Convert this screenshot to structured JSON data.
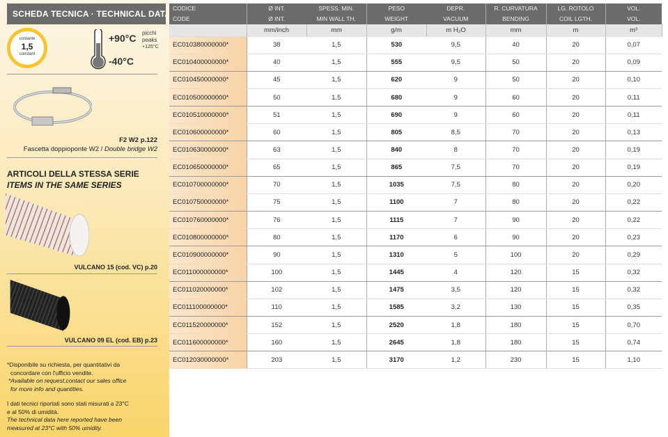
{
  "sidebar": {
    "title": "SCHEDA TECNICA · TECHNICAL DATA",
    "badge": {
      "top": "costante",
      "value": "1,5",
      "bottom": "constant"
    },
    "temp": {
      "max": "+90°C",
      "min": "-40°C",
      "peak1": "picchi",
      "peak2": "peaks",
      "peak3": "+125°C",
      "icon": "thermometer-icon"
    },
    "accessory": {
      "code": "F2 W2 p.122",
      "desc_it": "Fascetta doppioponte W2 / ",
      "desc_en": "Double bridge W2"
    },
    "series_title_it": "ARTICOLI DELLA STESSA SERIE",
    "series_title_en": "ITEMS IN THE SAME SERIES",
    "related": [
      {
        "label": "VULCANO 15 (cod. VC) p.20"
      },
      {
        "label": "VULCANO 09 EL (cod. EB) p.23"
      }
    ],
    "notes": {
      "n1_it": "*Disponibile su richiesta, per quantitativi da",
      "n1_it2": "concordare con l'ufficio vendite.",
      "n1_en": "*Available on request,contact our sales office",
      "n1_en2": "for more info and quantities.",
      "n2_it": "I dati tecnici riportati sono stati misurati a 23°C",
      "n2_it2": "e al 50% di umidità.",
      "n2_en": "The technical data here reported have been",
      "n2_en2": "measured at 23°C with 50% umidity."
    }
  },
  "table": {
    "header_it": [
      "CODICE",
      "Ø INT.",
      "SPESS. MIN.",
      "PESO",
      "DEPR.",
      "R. CURVATURA",
      "LG. ROTOLO",
      "VOL."
    ],
    "header_en": [
      "CODE",
      "Ø INT.",
      "MIN WALL TH.",
      "WEIGHT",
      "VACUUM",
      "BENDING",
      "COIL LGTH.",
      "VOL."
    ],
    "units": [
      "",
      "mm/inch",
      "mm",
      "g/m",
      "m H₂O",
      "mm",
      "m",
      "m³"
    ],
    "rows": [
      [
        "EC010380000000*",
        "38",
        "1,5",
        "530",
        "9,5",
        "40",
        "20",
        "0,07"
      ],
      [
        "EC010400000000*",
        "40",
        "1,5",
        "555",
        "9,5",
        "50",
        "20",
        "0,09"
      ],
      [
        "EC010450000000*",
        "45",
        "1,5",
        "620",
        "9",
        "50",
        "20",
        "0,10"
      ],
      [
        "EC010500000000*",
        "50",
        "1,5",
        "680",
        "9",
        "60",
        "20",
        "0,11"
      ],
      [
        "EC010510000000*",
        "51",
        "1,5",
        "690",
        "9",
        "60",
        "20",
        "0,11"
      ],
      [
        "EC010600000000*",
        "60",
        "1,5",
        "805",
        "8,5",
        "70",
        "20",
        "0,13"
      ],
      [
        "EC010630000000*",
        "63",
        "1,5",
        "840",
        "8",
        "70",
        "20",
        "0,19"
      ],
      [
        "EC010650000000*",
        "65",
        "1,5",
        "865",
        "7,5",
        "70",
        "20",
        "0,19"
      ],
      [
        "EC010700000000*",
        "70",
        "1,5",
        "1035",
        "7,5",
        "80",
        "20",
        "0,20"
      ],
      [
        "EC010750000000*",
        "75",
        "1,5",
        "1100",
        "7",
        "80",
        "20",
        "0,22"
      ],
      [
        "EC010760000000*",
        "76",
        "1,5",
        "1115",
        "7",
        "90",
        "20",
        "0,22"
      ],
      [
        "EC010800000000*",
        "80",
        "1,5",
        "1170",
        "6",
        "90",
        "20",
        "0,23"
      ],
      [
        "EC010900000000*",
        "90",
        "1,5",
        "1310",
        "5",
        "100",
        "20",
        "0,29"
      ],
      [
        "EC011000000000*",
        "100",
        "1,5",
        "1445",
        "4",
        "120",
        "15",
        "0,32"
      ],
      [
        "EC011020000000*",
        "102",
        "1,5",
        "1475",
        "3,5",
        "120",
        "15",
        "0,32"
      ],
      [
        "EC011100000000*",
        "110",
        "1,5",
        "1585",
        "3,2",
        "130",
        "15",
        "0,35"
      ],
      [
        "EC011520000000*",
        "152",
        "1,5",
        "2520",
        "1,8",
        "180",
        "15",
        "0,70"
      ],
      [
        "EC011600000000*",
        "160",
        "1,5",
        "2645",
        "1,8",
        "180",
        "15",
        "0,74"
      ],
      [
        "EC012030000000*",
        "203",
        "1,5",
        "3170",
        "1,2",
        "230",
        "15",
        "1,10"
      ]
    ]
  },
  "colors": {
    "header": "#6b6b6b",
    "code_cell": "#f7d3a8",
    "badge": "#f6c52f"
  }
}
